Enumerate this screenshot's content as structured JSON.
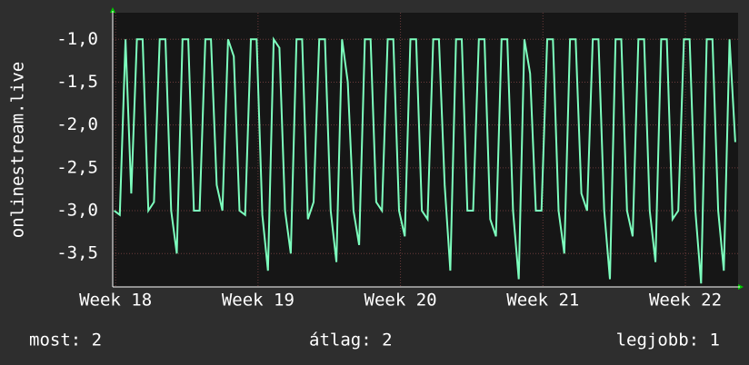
{
  "chart_data": {
    "type": "line",
    "y_label": "onlinestream.live",
    "x": [
      17.99,
      18.03,
      18.07,
      18.11,
      18.15,
      18.19,
      18.23,
      18.27,
      18.31,
      18.35,
      18.39,
      18.43,
      18.47,
      18.51,
      18.55,
      18.59,
      18.63,
      18.67,
      18.71,
      18.75,
      18.79,
      18.83,
      18.87,
      18.91,
      18.95,
      18.99,
      19.03,
      19.07,
      19.11,
      19.15,
      19.19,
      19.23,
      19.27,
      19.31,
      19.35,
      19.39,
      19.43,
      19.47,
      19.51,
      19.55,
      19.59,
      19.63,
      19.67,
      19.71,
      19.75,
      19.79,
      19.83,
      19.87,
      19.91,
      19.95,
      19.99,
      20.03,
      20.07,
      20.11,
      20.15,
      20.19,
      20.23,
      20.27,
      20.31,
      20.35,
      20.39,
      20.43,
      20.47,
      20.51,
      20.55,
      20.59,
      20.63,
      20.67,
      20.71,
      20.75,
      20.79,
      20.83,
      20.87,
      20.91,
      20.95,
      20.99,
      21.03,
      21.07,
      21.11,
      21.15,
      21.19,
      21.23,
      21.27,
      21.31,
      21.35,
      21.39,
      21.43,
      21.47,
      21.51,
      21.55,
      21.59,
      21.63,
      21.67,
      21.71,
      21.75,
      21.79,
      21.83,
      21.87,
      21.91,
      21.95,
      21.99,
      22.03,
      22.07,
      22.11,
      22.15,
      22.19,
      22.23,
      22.27,
      22.31,
      22.35
    ],
    "series": [
      {
        "color": "#7dffbe",
        "values": [
          -3.0,
          -3.05,
          -1.0,
          -2.8,
          -1.0,
          -1.0,
          -3.0,
          -2.9,
          -1.0,
          -1.0,
          -3.0,
          -3.5,
          -1.0,
          -1.0,
          -3.0,
          -3.0,
          -1.0,
          -1.0,
          -2.7,
          -3.0,
          -1.0,
          -1.2,
          -3.0,
          -3.05,
          -1.0,
          -1.0,
          -3.05,
          -3.7,
          -1.0,
          -1.1,
          -3.0,
          -3.5,
          -1.0,
          -1.0,
          -3.1,
          -2.9,
          -1.0,
          -1.0,
          -3.0,
          -3.6,
          -1.0,
          -1.5,
          -3.0,
          -3.4,
          -1.0,
          -1.0,
          -2.9,
          -3.0,
          -1.0,
          -1.0,
          -3.0,
          -3.3,
          -1.0,
          -1.0,
          -3.0,
          -3.1,
          -1.0,
          -1.0,
          -2.7,
          -3.7,
          -1.0,
          -1.0,
          -3.0,
          -3.0,
          -1.0,
          -1.0,
          -3.1,
          -3.3,
          -1.0,
          -1.0,
          -3.0,
          -3.8,
          -1.0,
          -1.4,
          -3.0,
          -3.0,
          -1.0,
          -1.0,
          -3.0,
          -3.5,
          -1.0,
          -1.0,
          -2.8,
          -3.0,
          -1.0,
          -1.0,
          -3.0,
          -3.8,
          -1.0,
          -1.0,
          -3.0,
          -3.3,
          -1.0,
          -1.0,
          -3.0,
          -3.6,
          -1.0,
          -1.0,
          -3.1,
          -3.0,
          -1.0,
          -1.0,
          -3.0,
          -3.85,
          -1.0,
          -1.0,
          -3.0,
          -3.7,
          -1.0,
          -2.2
        ]
      }
    ],
    "xlim": [
      17.98,
      22.37
    ],
    "xticks": [
      {
        "value": 18,
        "label": "Week 18"
      },
      {
        "value": 19,
        "label": "Week 19"
      },
      {
        "value": 20,
        "label": "Week 20"
      },
      {
        "value": 21,
        "label": "Week 21"
      },
      {
        "value": 22,
        "label": "Week 22"
      }
    ],
    "ylim": [
      -3.89,
      -0.69
    ],
    "yticks": [
      {
        "value": -1,
        "label": "-1,0"
      },
      {
        "value": -1.5,
        "label": "-1,5"
      },
      {
        "value": -2,
        "label": "-2,0"
      },
      {
        "value": -2.5,
        "label": "-2,5"
      },
      {
        "value": -3,
        "label": "-3,0"
      },
      {
        "value": -3.5,
        "label": "-3,5"
      }
    ],
    "grid": true,
    "stats": [
      "most: 2",
      "átlag: 2",
      "legjobb: 1"
    ]
  }
}
